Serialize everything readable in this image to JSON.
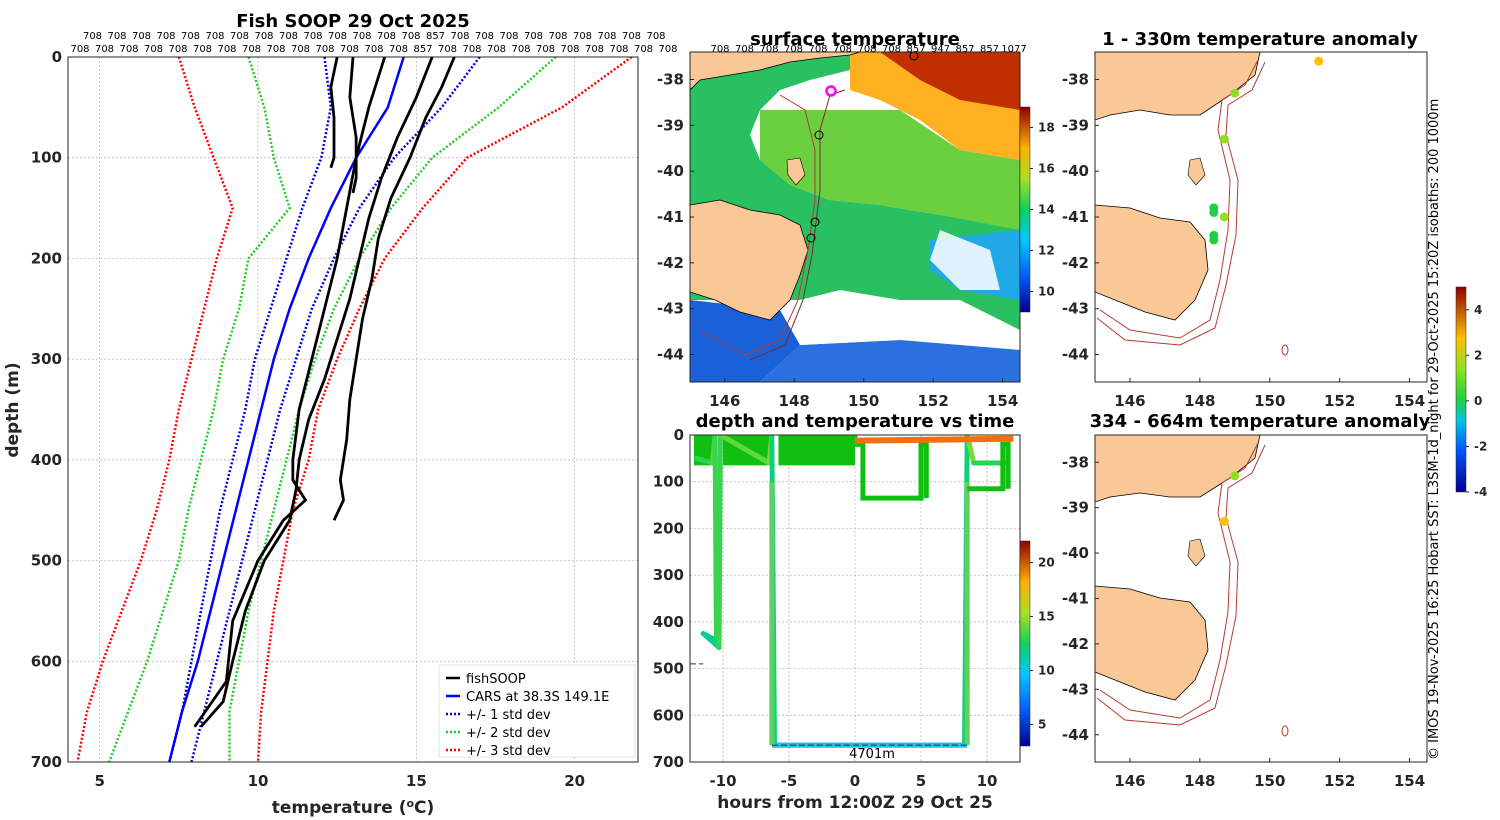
{
  "colors": {
    "fishsoop": "#000000",
    "cars": "#0000ff",
    "std1": "#0000dd",
    "std2": "#22cc22",
    "std3": "#ff0000",
    "land": "#f9c896",
    "isobath": "#b83a2e",
    "track": "#7a2a2a",
    "marker": "#ff00ff"
  },
  "side_caption": "© IMOS 19-Nov-2025 16:25 Hobart SST: L3SM-1d_night for 29-Oct-2025 15:20Z isobaths: 200  1000m",
  "chart_data": [
    {
      "id": "profile",
      "type": "line",
      "title": "Fish SOOP 29 Oct 2025",
      "xlabel": "temperature (°C)",
      "ylabel": "depth (m)",
      "xlim": [
        4,
        22
      ],
      "ylim": [
        0,
        700
      ],
      "xticks": [
        5,
        10,
        15,
        20
      ],
      "yticks": [
        0,
        100,
        200,
        300,
        400,
        500,
        600,
        700
      ],
      "count_labels_row1": [
        "708",
        "708",
        "708",
        "708",
        "708",
        "708",
        "708",
        "708",
        "708",
        "708",
        "708",
        "708",
        "708",
        "708",
        "857",
        "708",
        "708",
        "708",
        "708",
        "708",
        "708",
        "708",
        "708",
        "708"
      ],
      "count_labels_row2": [
        "708",
        "708",
        "708",
        "708",
        "708",
        "708",
        "708",
        "708",
        "708",
        "708",
        "708",
        "708",
        "708",
        "708",
        "857",
        "708",
        "708",
        "708",
        "708",
        "708",
        "708",
        "708",
        "708",
        "708",
        "708"
      ],
      "count_labels_row3": [
        "708",
        "708",
        "708",
        "708",
        "708",
        "708",
        "708",
        "708",
        "857",
        "947",
        "857",
        "857",
        "1077"
      ],
      "cars": {
        "depth": [
          0,
          50,
          100,
          150,
          200,
          250,
          300,
          350,
          400,
          450,
          500,
          550,
          600,
          650,
          700
        ],
        "temp": [
          14.6,
          14.1,
          13.1,
          12.3,
          11.6,
          11.0,
          10.5,
          10.1,
          9.7,
          9.3,
          8.9,
          8.5,
          8.1,
          7.6,
          7.2
        ]
      },
      "std_profiles": [
        {
          "name": "+/- 1 std dev",
          "lo": [
            12.1,
            12.3,
            12.0,
            11.4,
            10.9,
            10.4,
            9.9,
            9.6,
            9.2,
            8.8,
            8.5,
            8.2,
            7.9,
            7.6,
            7.2
          ],
          "hi": [
            17.0,
            15.8,
            14.3,
            13.2,
            12.4,
            11.7,
            11.2,
            10.7,
            10.3,
            9.9,
            9.5,
            9.1,
            8.7,
            8.3,
            7.9
          ],
          "depth": [
            0,
            50,
            100,
            150,
            200,
            250,
            300,
            350,
            400,
            450,
            500,
            550,
            600,
            650,
            700
          ]
        },
        {
          "name": "+/- 2 std dev",
          "lo": [
            9.7,
            10.2,
            10.5,
            11.0,
            9.7,
            9.4,
            8.9,
            8.6,
            8.2,
            7.8,
            7.5,
            7.0,
            6.5,
            5.9,
            5.3
          ],
          "hi": [
            19.4,
            17.6,
            15.5,
            14.2,
            13.2,
            12.4,
            11.8,
            11.3,
            10.9,
            10.5,
            10.1,
            9.7,
            9.4,
            9.1,
            9.1
          ],
          "depth": [
            0,
            50,
            100,
            150,
            200,
            250,
            300,
            350,
            400,
            450,
            500,
            550,
            600,
            650,
            700
          ]
        },
        {
          "name": "+/- 3 std dev",
          "lo": [
            7.5,
            8.0,
            8.6,
            9.2,
            8.7,
            8.3,
            7.9,
            7.5,
            7.2,
            6.8,
            6.3,
            5.7,
            5.1,
            4.6,
            4.3
          ],
          "hi": [
            21.8,
            19.6,
            16.6,
            15.2,
            14.0,
            13.2,
            12.5,
            11.9,
            11.6,
            11.1,
            10.8,
            10.5,
            10.3,
            10.1,
            10.0
          ],
          "depth": [
            0,
            50,
            100,
            150,
            200,
            250,
            300,
            350,
            400,
            450,
            500,
            550,
            600,
            650,
            700
          ]
        }
      ],
      "fishsoop_profiles": [
        {
          "depth": [
            0,
            30,
            60,
            100,
            140,
            180,
            220,
            260,
            300,
            340,
            380,
            420,
            440,
            460
          ],
          "temp": [
            16.2,
            15.8,
            15.3,
            14.8,
            14.2,
            13.8,
            13.6,
            13.3,
            13.1,
            12.9,
            12.8,
            12.6,
            12.7,
            12.4
          ]
        },
        {
          "depth": [
            0,
            40,
            80,
            120,
            160,
            200,
            240,
            280,
            320,
            360,
            400,
            430,
            460,
            500,
            550,
            600,
            640,
            665
          ],
          "temp": [
            15.5,
            15.0,
            14.4,
            13.9,
            13.5,
            13.2,
            12.9,
            12.5,
            12.1,
            11.6,
            11.3,
            11.2,
            11.0,
            10.2,
            9.6,
            9.2,
            8.9,
            8.2
          ]
        },
        {
          "depth": [
            0,
            50,
            100,
            150,
            200,
            250,
            300,
            350,
            400,
            420,
            440,
            460,
            500,
            560,
            620,
            665
          ],
          "temp": [
            14.0,
            13.5,
            13.1,
            12.8,
            12.5,
            12.1,
            11.7,
            11.3,
            11.1,
            11.1,
            11.5,
            10.8,
            10.0,
            9.2,
            9.0,
            8.0
          ]
        },
        {
          "depth": [
            0,
            40,
            80,
            120,
            135
          ],
          "temp": [
            13.0,
            12.9,
            13.1,
            13.1,
            13.0
          ]
        },
        {
          "depth": [
            0,
            30,
            60,
            100,
            110
          ],
          "temp": [
            12.5,
            12.3,
            12.4,
            12.4,
            12.3
          ]
        }
      ],
      "legend": [
        {
          "label": "fishSOOP",
          "style": "solid",
          "color": "#000000"
        },
        {
          "label": "CARS at 38.3S 149.1E",
          "style": "solid",
          "color": "#0000ff"
        },
        {
          "label": "+/- 1 std dev",
          "style": "dotted",
          "color": "#0000dd"
        },
        {
          "label": "+/- 2 std dev",
          "style": "dotted",
          "color": "#22cc22"
        },
        {
          "label": "+/- 3 std dev",
          "style": "dotted",
          "color": "#ff0000"
        }
      ]
    },
    {
      "id": "sst",
      "type": "heatmap",
      "title": "surface temperature",
      "xlim": [
        145,
        154.5
      ],
      "ylim": [
        -44.6,
        -37.4
      ],
      "xticks": [
        146,
        148,
        150,
        152,
        154
      ],
      "yticks": [
        -38,
        -39,
        -40,
        -41,
        -42,
        -43,
        -44
      ],
      "colorbar": {
        "min": 9,
        "max": 19,
        "ticks": [
          10,
          12,
          14,
          16,
          18
        ]
      }
    },
    {
      "id": "timeseries",
      "type": "line",
      "title": "depth and temperature vs time",
      "xlabel": "hours from 12:00Z 29 Oct 25",
      "xlim": [
        -12.5,
        12.5
      ],
      "ylim": [
        0,
        700
      ],
      "xticks": [
        -10,
        -5,
        0,
        5,
        10
      ],
      "yticks": [
        0,
        100,
        200,
        300,
        400,
        500,
        600,
        700
      ],
      "annotation": "4701m",
      "colorbar": {
        "min": 3,
        "max": 22,
        "ticks": [
          5,
          10,
          15,
          20
        ]
      },
      "trace": [
        {
          "t": -12.0,
          "d": 50,
          "temp": 13.0
        },
        {
          "t": -10.8,
          "d": 60,
          "temp": 13.0
        },
        {
          "t": -10.6,
          "d": 0,
          "temp": 14.5
        },
        {
          "t": -10.5,
          "d": 440,
          "temp": 12.0
        },
        {
          "t": -11.5,
          "d": 425,
          "temp": 12.0
        },
        {
          "t": -10.3,
          "d": 455,
          "temp": 11.5
        },
        {
          "t": -10.2,
          "d": 0,
          "temp": 15.0
        },
        {
          "t": -6.5,
          "d": 60,
          "temp": 13.0
        },
        {
          "t": -6.3,
          "d": 0,
          "temp": 16.0
        },
        {
          "t": -6.1,
          "d": 664,
          "temp": 8.0
        },
        {
          "t": 8.3,
          "d": 664,
          "temp": 8.0
        },
        {
          "t": 8.5,
          "d": 0,
          "temp": 16.0
        },
        {
          "t": 9.0,
          "d": 60,
          "temp": 13.0
        },
        {
          "t": 11.5,
          "d": 60,
          "temp": 13.0
        }
      ]
    },
    {
      "id": "anom_top",
      "type": "scatter",
      "title": "1 - 330m temperature anomaly",
      "xlim": [
        145,
        154.5
      ],
      "ylim": [
        -44.6,
        -37.4
      ],
      "xticks": [
        146,
        148,
        150,
        152,
        154
      ],
      "yticks": [
        -38,
        -39,
        -40,
        -41,
        -42,
        -43,
        -44
      ],
      "points": [
        {
          "lon": 151.4,
          "lat": -37.6,
          "anom": 2.6
        },
        {
          "lon": 149.0,
          "lat": -38.3,
          "anom": 1.0
        },
        {
          "lon": 148.7,
          "lat": -39.3,
          "anom": 1.2
        },
        {
          "lon": 148.4,
          "lat": -40.8,
          "anom": 0.4
        },
        {
          "lon": 148.4,
          "lat": -40.9,
          "anom": 0.3
        },
        {
          "lon": 148.7,
          "lat": -41.0,
          "anom": 0.5
        },
        {
          "lon": 148.4,
          "lat": -41.4,
          "anom": 0.0
        },
        {
          "lon": 148.4,
          "lat": -41.5,
          "anom": 0.0
        }
      ]
    },
    {
      "id": "anom_bottom",
      "type": "scatter",
      "title": "334 - 664m temperature anomaly",
      "xlim": [
        145,
        154.5
      ],
      "ylim": [
        -44.6,
        -37.4
      ],
      "xticks": [
        146,
        148,
        150,
        152,
        154
      ],
      "yticks": [
        -38,
        -39,
        -40,
        -41,
        -42,
        -43,
        -44
      ],
      "points": [
        {
          "lon": 149.0,
          "lat": -38.3,
          "anom": 1.0
        },
        {
          "lon": 148.7,
          "lat": -39.3,
          "anom": 2.6
        }
      ],
      "colorbar": {
        "min": -4,
        "max": 5,
        "ticks": [
          4,
          2,
          0,
          -2,
          -4
        ]
      }
    }
  ]
}
